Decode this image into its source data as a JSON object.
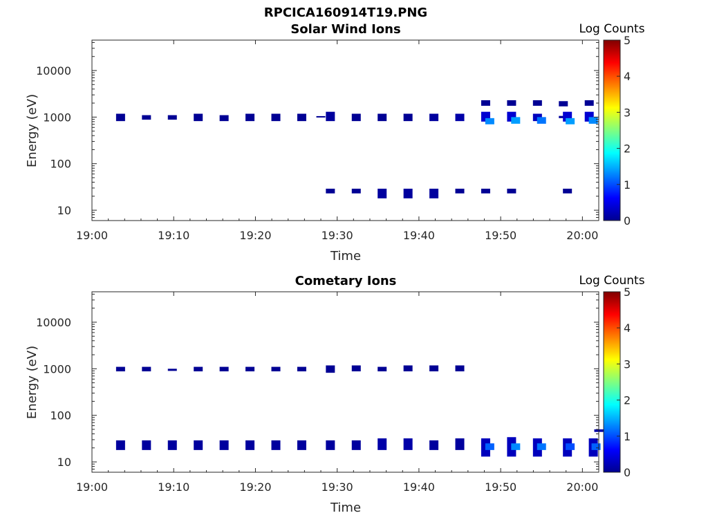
{
  "figure_title": "RPCICA160914T19.PNG",
  "chart_data": [
    {
      "type": "heatmap",
      "title": "Solar Wind Ions",
      "xlabel": "Time",
      "ylabel": "Energy (eV)",
      "y_scale": "log",
      "ylim": [
        6,
        45000
      ],
      "xlim": [
        "19:00",
        "20:02"
      ],
      "x_ticks": [
        "19:00",
        "19:10",
        "19:20",
        "19:30",
        "19:40",
        "19:50",
        "20:00"
      ],
      "y_ticks": [
        "10",
        "100",
        "1000",
        "10000"
      ],
      "colorbar": {
        "label": "Log Counts",
        "range": [
          0,
          5
        ],
        "ticks": [
          "0",
          "1",
          "2",
          "3",
          "4",
          "5"
        ]
      },
      "cells": [
        {
          "t": "19:03:30",
          "e": [
            820,
            1180
          ],
          "z": 0.1
        },
        {
          "t": "19:06:40",
          "e": [
            880,
            1100
          ],
          "z": 0.1
        },
        {
          "t": "19:09:50",
          "e": [
            880,
            1100
          ],
          "z": 0.1
        },
        {
          "t": "19:13:00",
          "e": [
            820,
            1180
          ],
          "z": 0.1
        },
        {
          "t": "19:16:10",
          "e": [
            820,
            1100
          ],
          "z": 0.1
        },
        {
          "t": "19:19:20",
          "e": [
            820,
            1180
          ],
          "z": 0.1
        },
        {
          "t": "19:22:30",
          "e": [
            820,
            1180
          ],
          "z": 0.1
        },
        {
          "t": "19:25:40",
          "e": [
            820,
            1180
          ],
          "z": 0.1
        },
        {
          "t": "19:28:00",
          "e": [
            980,
            1050
          ],
          "z": 0.1
        },
        {
          "t": "19:29:10",
          "e": [
            820,
            1300
          ],
          "z": 0.15
        },
        {
          "t": "19:32:20",
          "e": [
            820,
            1180
          ],
          "z": 0.1
        },
        {
          "t": "19:35:30",
          "e": [
            820,
            1180
          ],
          "z": 0.1
        },
        {
          "t": "19:38:40",
          "e": [
            820,
            1180
          ],
          "z": 0.1
        },
        {
          "t": "19:41:50",
          "e": [
            820,
            1180
          ],
          "z": 0.15
        },
        {
          "t": "19:45:00",
          "e": [
            820,
            1180
          ],
          "z": 0.2
        },
        {
          "t": "19:48:10",
          "e": [
            800,
            1300
          ],
          "z": 0.4
        },
        {
          "t": "19:48:40",
          "e": [
            700,
            950
          ],
          "z": 1.3
        },
        {
          "t": "19:51:20",
          "e": [
            800,
            1300
          ],
          "z": 0.4
        },
        {
          "t": "19:51:50",
          "e": [
            720,
            1000
          ],
          "z": 1.4
        },
        {
          "t": "19:54:30",
          "e": [
            820,
            1180
          ],
          "z": 0.3
        },
        {
          "t": "19:55:00",
          "e": [
            720,
            1000
          ],
          "z": 1.2
        },
        {
          "t": "19:57:40",
          "e": [
            950,
            1060
          ],
          "z": 0.15
        },
        {
          "t": "19:58:10",
          "e": [
            800,
            1300
          ],
          "z": 0.4
        },
        {
          "t": "19:58:30",
          "e": [
            700,
            950
          ],
          "z": 1.4
        },
        {
          "t": "20:00:50",
          "e": [
            800,
            1300
          ],
          "z": 0.4
        },
        {
          "t": "20:01:20",
          "e": [
            720,
            1000
          ],
          "z": 1.3
        },
        {
          "t": "19:48:10",
          "e": [
            1750,
            2300
          ],
          "z": 0.1
        },
        {
          "t": "19:51:20",
          "e": [
            1750,
            2300
          ],
          "z": 0.1
        },
        {
          "t": "19:54:30",
          "e": [
            1750,
            2300
          ],
          "z": 0.1
        },
        {
          "t": "19:57:40",
          "e": [
            1700,
            2200
          ],
          "z": 0.1
        },
        {
          "t": "20:00:50",
          "e": [
            1750,
            2300
          ],
          "z": 0.1
        },
        {
          "t": "19:29:10",
          "e": [
            23,
            29
          ],
          "z": 0.1
        },
        {
          "t": "19:32:20",
          "e": [
            23,
            29
          ],
          "z": 0.1
        },
        {
          "t": "19:35:30",
          "e": [
            18,
            29
          ],
          "z": 0.15
        },
        {
          "t": "19:38:40",
          "e": [
            18,
            29
          ],
          "z": 0.15
        },
        {
          "t": "19:41:50",
          "e": [
            18,
            29
          ],
          "z": 0.15
        },
        {
          "t": "19:45:00",
          "e": [
            23,
            29
          ],
          "z": 0.1
        },
        {
          "t": "19:48:10",
          "e": [
            23,
            29
          ],
          "z": 0.1
        },
        {
          "t": "19:51:20",
          "e": [
            23,
            29
          ],
          "z": 0.1
        },
        {
          "t": "19:58:10",
          "e": [
            23,
            29
          ],
          "z": 0.1
        }
      ]
    },
    {
      "type": "heatmap",
      "title": "Cometary Ions",
      "xlabel": "Time",
      "ylabel": "Energy (eV)",
      "y_scale": "log",
      "ylim": [
        6,
        45000
      ],
      "xlim": [
        "19:00",
        "20:02"
      ],
      "x_ticks": [
        "19:00",
        "19:10",
        "19:20",
        "19:30",
        "19:40",
        "19:50",
        "20:00"
      ],
      "y_ticks": [
        "10",
        "100",
        "1000",
        "10000"
      ],
      "colorbar": {
        "label": "Log Counts",
        "range": [
          0,
          5
        ],
        "ticks": [
          "0",
          "1",
          "2",
          "3",
          "4",
          "5"
        ]
      },
      "cells": [
        {
          "t": "19:03:30",
          "e": [
            880,
            1100
          ],
          "z": 0.1
        },
        {
          "t": "19:06:40",
          "e": [
            880,
            1100
          ],
          "z": 0.1
        },
        {
          "t": "19:09:50",
          "e": [
            900,
            1000
          ],
          "z": 0.1
        },
        {
          "t": "19:13:00",
          "e": [
            880,
            1100
          ],
          "z": 0.1
        },
        {
          "t": "19:16:10",
          "e": [
            880,
            1100
          ],
          "z": 0.1
        },
        {
          "t": "19:19:20",
          "e": [
            880,
            1100
          ],
          "z": 0.1
        },
        {
          "t": "19:22:30",
          "e": [
            880,
            1100
          ],
          "z": 0.1
        },
        {
          "t": "19:25:40",
          "e": [
            880,
            1100
          ],
          "z": 0.1
        },
        {
          "t": "19:29:10",
          "e": [
            820,
            1180
          ],
          "z": 0.1
        },
        {
          "t": "19:32:20",
          "e": [
            880,
            1180
          ],
          "z": 0.1
        },
        {
          "t": "19:35:30",
          "e": [
            880,
            1100
          ],
          "z": 0.1
        },
        {
          "t": "19:38:40",
          "e": [
            880,
            1180
          ],
          "z": 0.1
        },
        {
          "t": "19:41:50",
          "e": [
            880,
            1180
          ],
          "z": 0.1
        },
        {
          "t": "19:45:00",
          "e": [
            880,
            1180
          ],
          "z": 0.1
        },
        {
          "t": "19:03:30",
          "e": [
            18,
            29
          ],
          "z": 0.15
        },
        {
          "t": "19:06:40",
          "e": [
            18,
            29
          ],
          "z": 0.15
        },
        {
          "t": "19:09:50",
          "e": [
            18,
            29
          ],
          "z": 0.15
        },
        {
          "t": "19:13:00",
          "e": [
            18,
            29
          ],
          "z": 0.15
        },
        {
          "t": "19:16:10",
          "e": [
            18,
            29
          ],
          "z": 0.15
        },
        {
          "t": "19:19:20",
          "e": [
            18,
            29
          ],
          "z": 0.15
        },
        {
          "t": "19:22:30",
          "e": [
            18,
            29
          ],
          "z": 0.15
        },
        {
          "t": "19:25:40",
          "e": [
            18,
            29
          ],
          "z": 0.15
        },
        {
          "t": "19:29:10",
          "e": [
            18,
            29
          ],
          "z": 0.15
        },
        {
          "t": "19:32:20",
          "e": [
            18,
            29
          ],
          "z": 0.15
        },
        {
          "t": "19:35:30",
          "e": [
            18,
            32
          ],
          "z": 0.2
        },
        {
          "t": "19:38:40",
          "e": [
            18,
            32
          ],
          "z": 0.2
        },
        {
          "t": "19:41:50",
          "e": [
            18,
            29
          ],
          "z": 0.15
        },
        {
          "t": "19:45:00",
          "e": [
            18,
            32
          ],
          "z": 0.15
        },
        {
          "t": "19:48:10",
          "e": [
            13,
            32
          ],
          "z": 0.3
        },
        {
          "t": "19:48:40",
          "e": [
            18,
            25
          ],
          "z": 1.1
        },
        {
          "t": "19:51:20",
          "e": [
            13,
            34
          ],
          "z": 0.3
        },
        {
          "t": "19:51:50",
          "e": [
            18,
            25
          ],
          "z": 1.3
        },
        {
          "t": "19:54:30",
          "e": [
            13,
            32
          ],
          "z": 0.3
        },
        {
          "t": "19:55:00",
          "e": [
            18,
            25
          ],
          "z": 1.2
        },
        {
          "t": "19:58:10",
          "e": [
            13,
            32
          ],
          "z": 0.3
        },
        {
          "t": "19:58:30",
          "e": [
            18,
            25
          ],
          "z": 1.0
        },
        {
          "t": "20:01:20",
          "e": [
            13,
            32
          ],
          "z": 0.3
        },
        {
          "t": "20:01:40",
          "e": [
            18,
            25
          ],
          "z": 1.1
        },
        {
          "t": "20:02:00",
          "e": [
            44,
            50
          ],
          "z": 0.2
        }
      ]
    }
  ]
}
